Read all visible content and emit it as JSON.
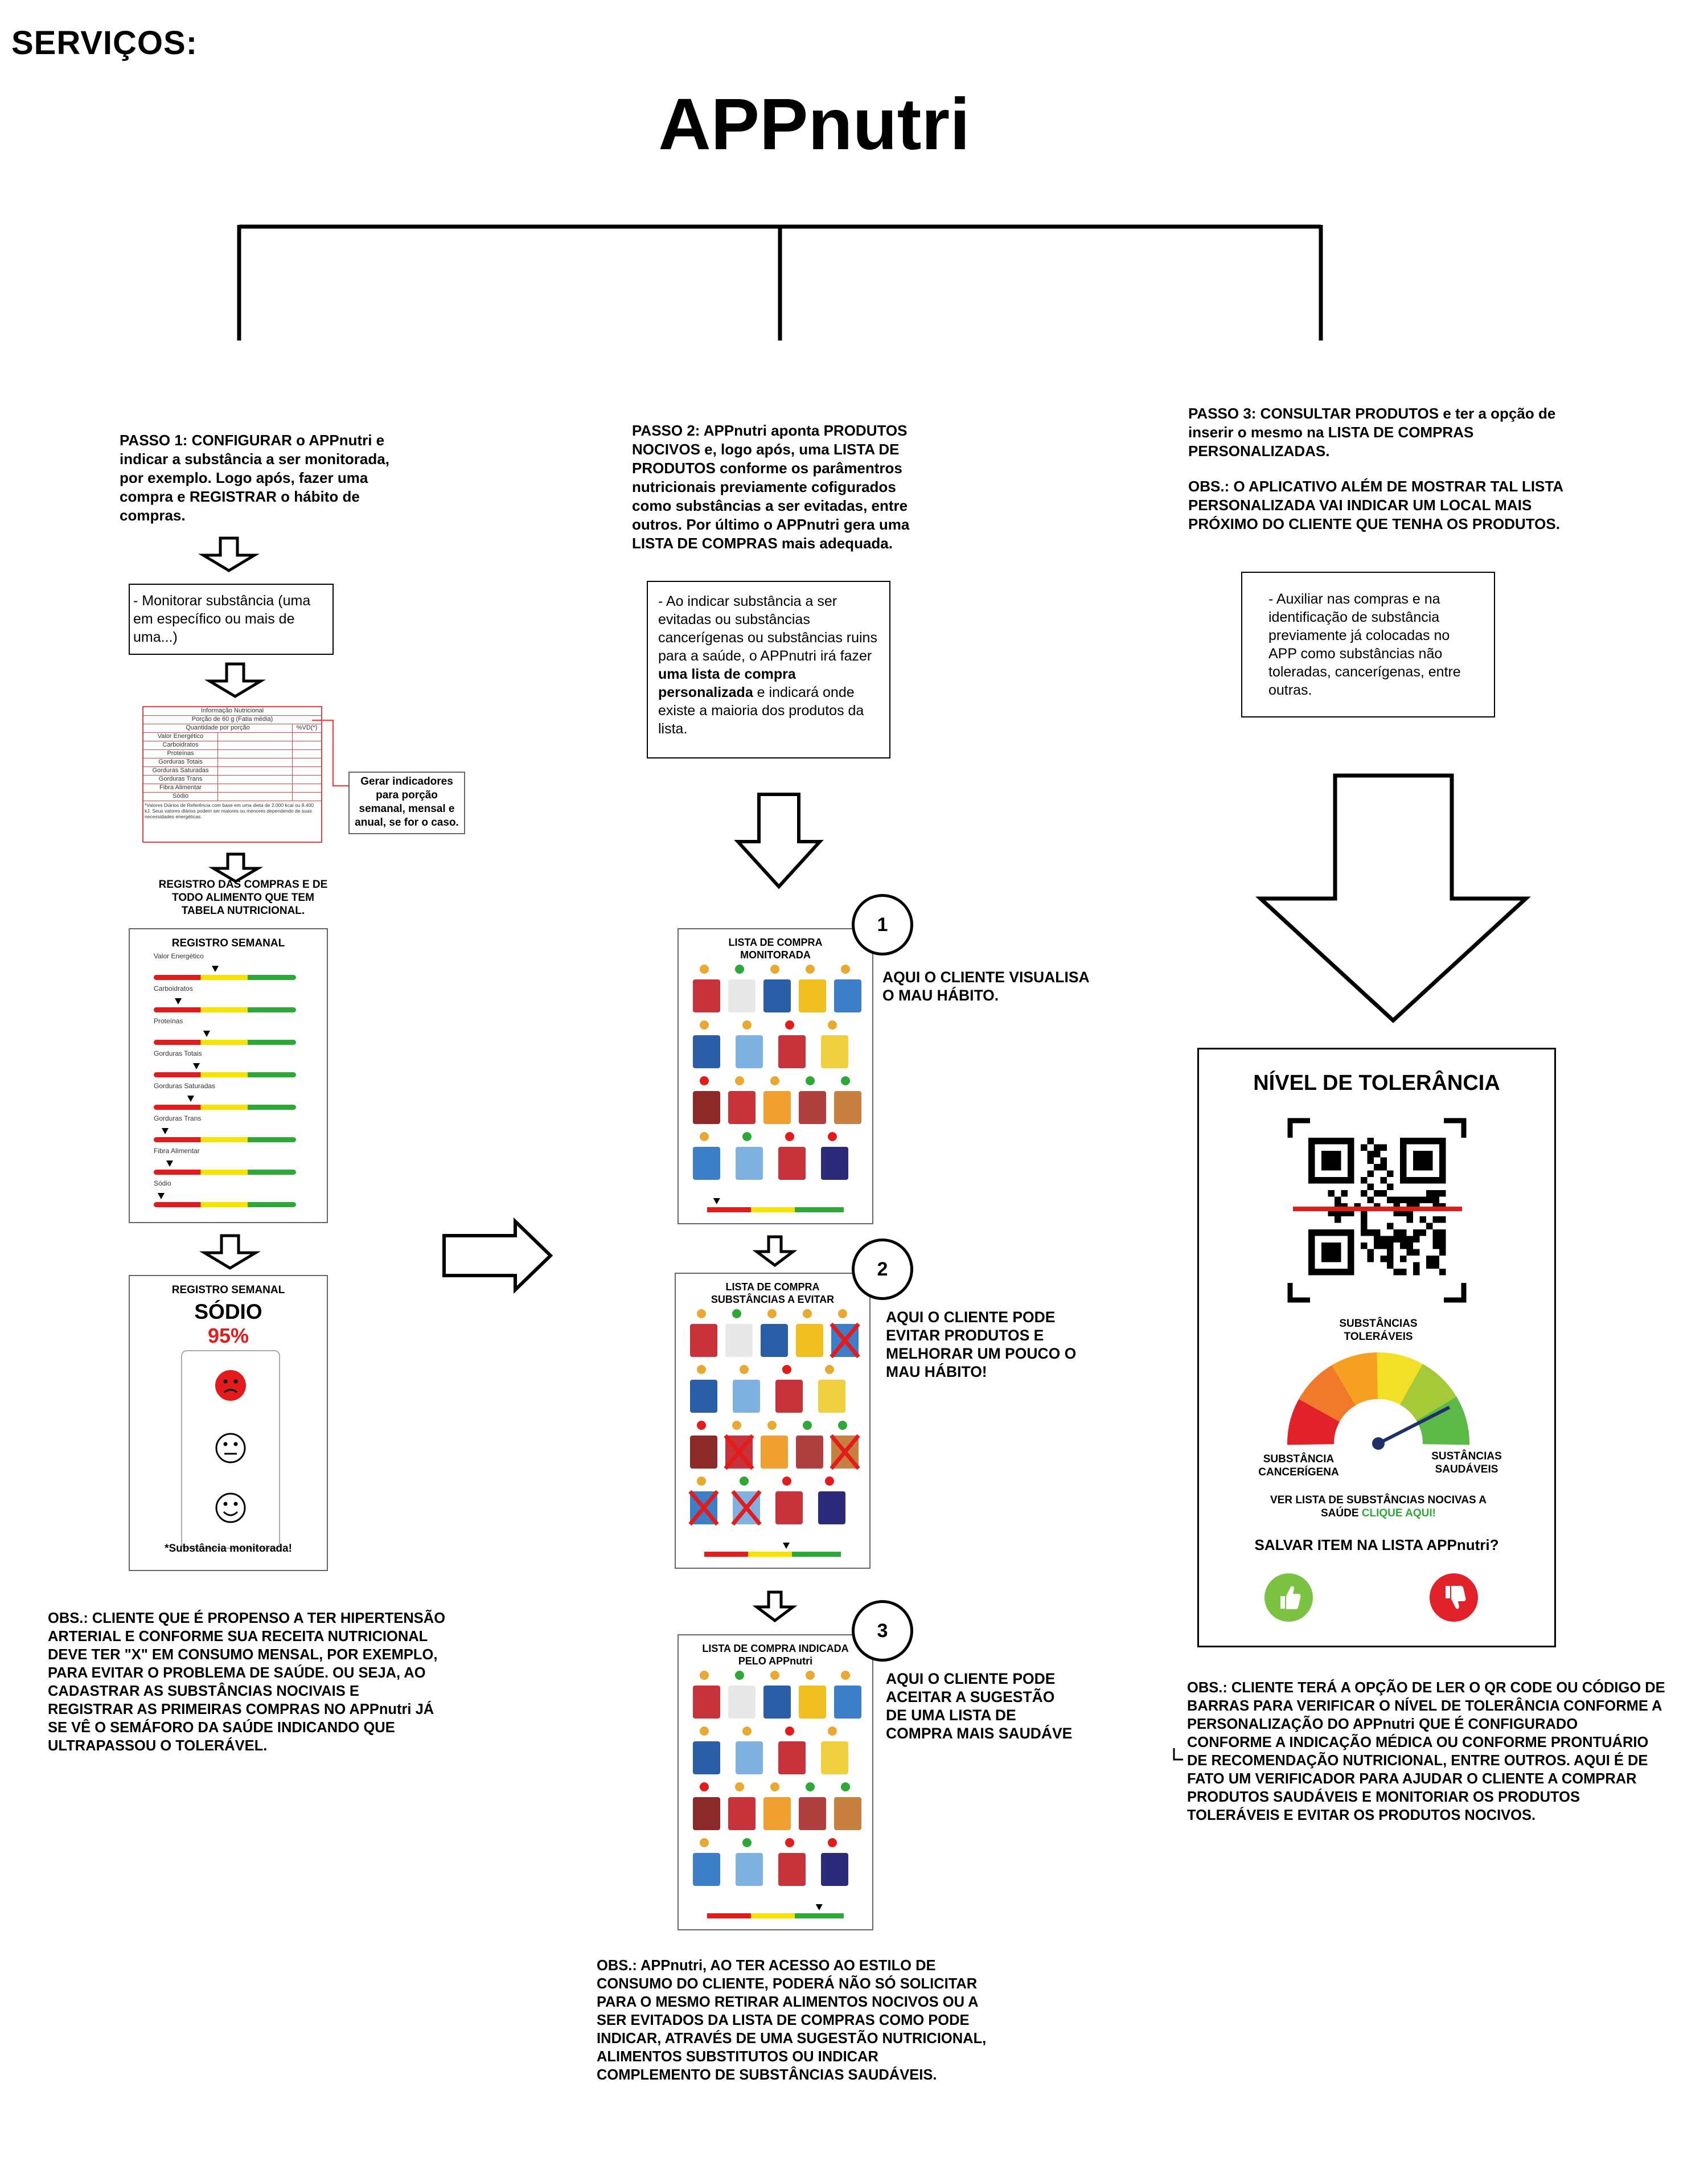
{
  "header": {
    "section_label": "SERVIÇOS:",
    "app_title": "APPnutri"
  },
  "step1": {
    "text": "PASSO 1:  CONFIGURAR  o APPnutri e indicar a substância a ser monitorada, por exemplo. Logo após, fazer uma compra e REGISTRAR o hábito de compras.",
    "box": "- Monitorar substância (uma em específico ou mais de uma...)",
    "label_note": "Gerar indicadores para porção semanal, mensal e anual, se for o caso.",
    "register_text": "REGISTRO DAS COMPRAS E DE TODO ALIMENTO QUE TEM TABELA NUTRICIONAL.",
    "obs": "OBS.: CLIENTE QUE É PROPENSO A TER HIPERTENSÃO ARTERIAL E CONFORME SUA RECEITA NUTRICIONAL DEVE TER \"X\" EM CONSUMO MENSAL, POR EXEMPLO, PARA EVITAR O PROBLEMA DE SAÚDE. OU SEJA, AO CADASTRAR AS SUBSTÂNCIAS NOCIVAIS E REGISTRAR AS PRIMEIRAS COMPRAS NO APPnutri JÁ SE VÊ O SEMÁFORO DA SAÚDE INDICANDO QUE ULTRAPASSOU O TOLERÁVEL."
  },
  "nutrition_table": {
    "title": "Informação Nutricional",
    "portion": "Porção de 60 g (Fatia média)",
    "qty_header": "Quantidade por porção",
    "vd_header": "%VD(*)",
    "rows": [
      "Valor Energético",
      "Carboidratos",
      "Proteínas",
      "Gorduras Totais",
      "Gorduras Saturadas",
      "Gorduras Trans",
      "Fibra Alimentar",
      "Sódio"
    ],
    "footnote": "*Valores Diários de Referência com base em uma dieta de 2.000 kcal ou 8.400 kJ. Seus valores diários podem ser maiores ou menores dependendo de suas necessidades energéticas."
  },
  "weekly_register": {
    "title": "REGISTRO SEMANAL",
    "items": [
      {
        "label": "Valor Energético",
        "level": 0.43
      },
      {
        "label": "Carboidratos",
        "level": 0.17
      },
      {
        "label": "Proteínas",
        "level": 0.37
      },
      {
        "label": "Gorduras Totais",
        "level": 0.3
      },
      {
        "label": "Gorduras Saturadas",
        "level": 0.26
      },
      {
        "label": "Gorduras Trans",
        "level": 0.08
      },
      {
        "label": "Fibra Alimentar",
        "level": 0.11
      },
      {
        "label": "Sódio",
        "level": 0.05
      }
    ],
    "colors": {
      "red": "#e31b1b",
      "yellow": "#f5e400",
      "green": "#2ea836"
    }
  },
  "sodium_card": {
    "title": "REGISTRO SEMANAL",
    "substance": "SÓDIO",
    "percent": "95%",
    "footer": "*Substância monitorada!",
    "percent_color": "#e31b1b"
  },
  "step2": {
    "text": "PASSO 2: APPnutri aponta PRODUTOS NOCIVOS e, logo após, uma LISTA DE PRODUTOS conforme os parâmentros nutricionais previamente cofigurados como substâncias a ser evitadas, entre outros. Por último o APPnutri gera uma LISTA DE COMPRAS mais adequada.",
    "box_part1": "- Ao indicar substância a ser evitadas ou substâncias cancerígenas ou substâncias ruins para a saúde, o APPnutri irá fazer ",
    "box_bold": "uma lista de compra personalizada",
    "box_part2": " e indicará onde existe a maioria dos produtos da lista.",
    "obs": "OBS.: APPnutri, AO TER ACESSO AO ESTILO DE CONSUMO DO CLIENTE, PODERÁ NÃO SÓ SOLICITAR PARA O MESMO RETIRAR ALIMENTOS NOCIVOS OU A SER EVITADOS DA LISTA DE COMPRAS COMO PODE INDICAR, ATRAVÉS DE UMA SUGESTÃO NUTRICIONAL, ALIMENTOS SUBSTITUTOS OU INDICAR COMPLEMENTO DE SUBSTÂNCIAS SAUDÁVEIS."
  },
  "lists": [
    {
      "number": "1",
      "title": "LISTA DE COMPRA MONITORADA",
      "caption": "AQUI O CLIENTE VISUALISA O MAU HÁBITO.",
      "level": 0.07
    },
    {
      "number": "2",
      "title": "LISTA DE COMPRA SUBSTÂNCIAS A EVITAR",
      "caption": "AQUI O CLIENTE PODE EVITAR PRODUTOS E  MELHORAR UM POUCO O MAU HÁBITO!",
      "level": 0.6
    },
    {
      "number": "3",
      "title": "LISTA DE COMPRA INDICADA PELO APPnutri",
      "caption": "AQUI O CLIENTE PODE ACEITAR A SUGESTÃO DE UMA LISTA DE COMPRA MAIS SAUDÁVE",
      "level": 0.82
    }
  ],
  "step3": {
    "text": "PASSO 3: CONSULTAR PRODUTOS e ter a opção de inserir o mesmo na LISTA DE COMPRAS PERSONALIZADAS.",
    "obs_top": "OBS.: O APLICATIVO ALÉM DE MOSTRAR TAL LISTA PERSONALIZADA VAI INDICAR UM LOCAL MAIS PRÓXIMO DO CLIENTE QUE TENHA OS PRODUTOS.",
    "box": "- Auxiliar nas compras e na identificação de substância previamente já colocadas no APP como substâncias não toleradas, cancerígenas, entre outras.",
    "obs_bottom": "OBS.: CLIENTE TERÁ A OPÇÃO DE LER O QR CODE OU CÓDIGO DE BARRAS PARA VERIFICAR O NÍVEL DE TOLERÂNCIA CONFORME A PERSONALIZAÇÃO DO APPnutri QUE É CONFIGURADO CONFORME A INDICAÇÃO MÉDICA OU CONFORME PRONTUÁRIO DE RECOMENDAÇÃO NUTRICIONAL, ENTRE OUTROS. AQUI É DE FATO UM VERIFICADOR PARA AJUDAR O CLIENTE A COMPRAR PRODUTOS SAUDÁVEIS E MONITORIAR OS PRODUTOS TOLERÁVEIS E EVITAR OS PRODUTOS NOCIVOS."
  },
  "tolerance_card": {
    "title": "NÍVEL DE TOLERÂNCIA",
    "label_tolerable": "SUBSTÂNCIAS TOLERÁVEIS",
    "label_carcinogenic": "SUBSTÂNCIA CANCERÍGENA",
    "label_healthy": "SUSTÂNCIAS SAUDÁVEIS",
    "see_list": "VER LISTA DE SUBSTÂNCIAS NOCIVAS A SAÚDE",
    "click_here": "CLIQUE AQUI!",
    "save_question": "SALVAR ITEM NA LISTA APPnutri?",
    "gauge_value": 0.85,
    "colors": {
      "accept": "#7cc242",
      "reject": "#e2222a",
      "link": "#2ea836"
    }
  }
}
